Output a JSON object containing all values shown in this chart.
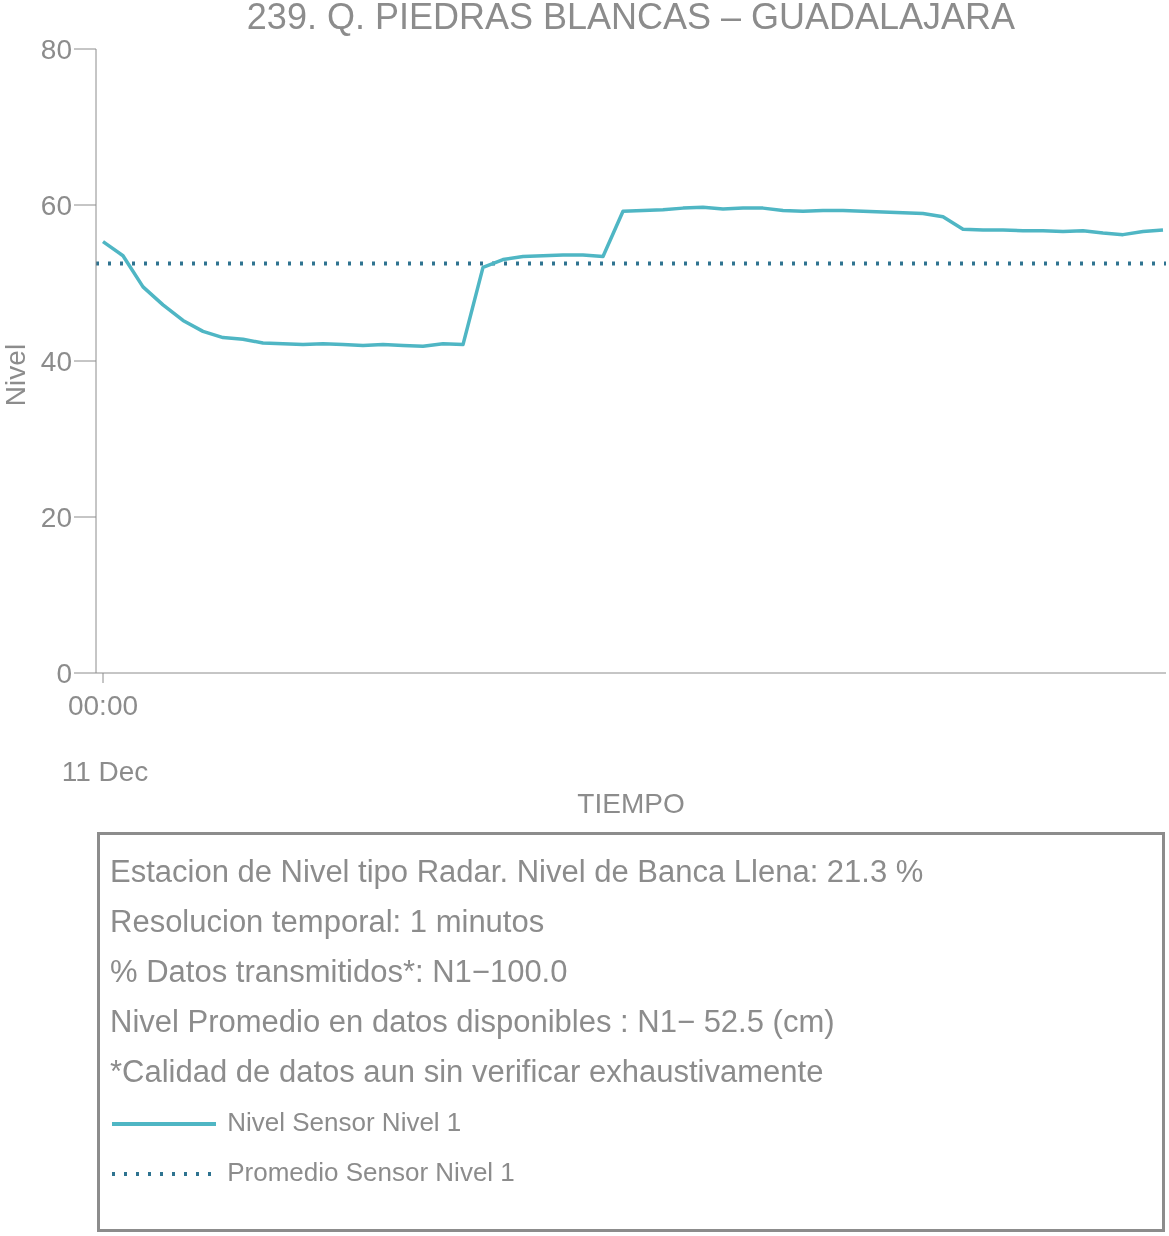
{
  "chart_data": {
    "type": "line",
    "title": "239. Q. PIEDRAS BLANCAS – GUADALAJARA",
    "xlabel": "TIEMPO",
    "ylabel": "Nivel",
    "categories": [
      "00:00\n11 Dec",
      null,
      null,
      null,
      null,
      null,
      null,
      null,
      null,
      null,
      null,
      null,
      null,
      null,
      null,
      null,
      null,
      null,
      null,
      null,
      null,
      null,
      null,
      null,
      null,
      null,
      null,
      null,
      null,
      null,
      null,
      null,
      null,
      null,
      null,
      null,
      null,
      null,
      null,
      null,
      null,
      null,
      null,
      null,
      null,
      null,
      null,
      null,
      null,
      null,
      null,
      null,
      null,
      null
    ],
    "ylim": [
      0,
      80
    ],
    "yticks": [
      0,
      20,
      40,
      60,
      80
    ],
    "grid": false,
    "legend": "bottom",
    "marker": "none",
    "annotations": [
      "Estacion de Nivel tipo Radar. Nivel de Banca Llena: 21.3 %",
      "Resolucion temporal: 1 minutos",
      "% Datos transmitidos*: N1−100.0",
      "Nivel Promedio en datos disponibles : N1− 52.5 (cm)",
      "*Calidad de datos aun sin verificar exhaustivamente"
    ],
    "series": [
      {
        "name": "Nivel Sensor Nivel 1",
        "color": "#4fb6c4",
        "values": [
          55.3,
          53.5,
          49.5,
          47.2,
          45.2,
          43.8,
          43.0,
          42.8,
          42.3,
          42.2,
          42.1,
          42.2,
          42.1,
          42.0,
          42.1,
          42.0,
          41.9,
          42.2,
          42.1,
          52.0,
          53.0,
          53.4,
          53.5,
          53.6,
          53.6,
          53.4,
          59.2,
          59.3,
          59.4,
          59.6,
          59.7,
          59.5,
          59.6,
          59.6,
          59.3,
          59.2,
          59.3,
          59.3,
          59.2,
          59.1,
          59.0,
          58.9,
          58.5,
          56.9,
          56.8,
          56.8,
          56.7,
          56.7,
          56.6,
          56.7,
          56.4,
          56.2,
          56.6,
          56.8
        ]
      }
    ],
    "ref_lines": [
      {
        "axis": "y",
        "value": 52.5,
        "label": "Promedio Sensor Nivel 1",
        "color": "#2e7390",
        "line_style": "dotted"
      }
    ]
  }
}
